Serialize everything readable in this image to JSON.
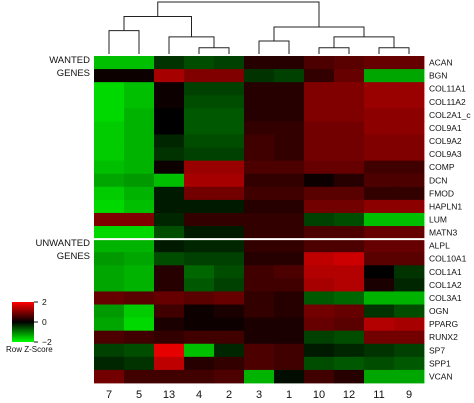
{
  "chart_data": {
    "type": "heatmap",
    "colormap": {
      "low": "#00ff00",
      "mid": "#000000",
      "high": "#ff0000"
    },
    "columns": [
      "7",
      "5",
      "13",
      "4",
      "2",
      "3",
      "1",
      "10",
      "12",
      "11",
      "9"
    ],
    "groups": [
      {
        "label_lines": [
          "WANTED",
          "GENES"
        ]
      },
      {
        "label_lines": [
          "UNWANTED",
          "GENES"
        ]
      }
    ],
    "rows": [
      {
        "gene": "ACAN",
        "group": 0,
        "values": [
          -1.5,
          -1.5,
          -0.4,
          -0.6,
          -0.5,
          0.3,
          0.3,
          0.6,
          0.7,
          0.8,
          0.8
        ]
      },
      {
        "gene": "BGN",
        "group": 0,
        "values": [
          0.1,
          0.1,
          1.3,
          1.0,
          1.0,
          -0.4,
          -0.5,
          0.4,
          0.8,
          -1.3,
          -1.3
        ]
      },
      {
        "gene": "COL11A1",
        "group": 0,
        "values": [
          -1.7,
          -1.5,
          0.1,
          -0.5,
          -0.5,
          0.3,
          0.3,
          1.0,
          1.0,
          1.2,
          1.2
        ]
      },
      {
        "gene": "COL11A2",
        "group": 0,
        "values": [
          -1.7,
          -1.5,
          0.1,
          -0.6,
          -0.6,
          0.3,
          0.3,
          1.0,
          1.0,
          1.2,
          1.2
        ]
      },
      {
        "gene": "COL2A1_c",
        "group": 0,
        "values": [
          -1.7,
          -1.4,
          0.0,
          -0.7,
          -0.7,
          0.3,
          0.3,
          1.0,
          1.0,
          1.1,
          1.1
        ]
      },
      {
        "gene": "COL9A1",
        "group": 0,
        "values": [
          -1.6,
          -1.4,
          0.0,
          -0.7,
          -0.7,
          0.4,
          0.4,
          0.9,
          0.9,
          1.1,
          1.1
        ]
      },
      {
        "gene": "COL9A2",
        "group": 0,
        "values": [
          -1.6,
          -1.4,
          -0.3,
          -0.6,
          -0.6,
          0.5,
          0.4,
          0.9,
          0.9,
          1.0,
          1.0
        ]
      },
      {
        "gene": "COL9A3",
        "group": 0,
        "values": [
          -1.6,
          -1.4,
          -0.4,
          -0.5,
          -0.5,
          0.5,
          0.4,
          0.9,
          0.9,
          1.0,
          1.0
        ]
      },
      {
        "gene": "COMP",
        "group": 0,
        "values": [
          -1.5,
          -1.4,
          0.1,
          1.2,
          1.2,
          0.6,
          0.6,
          0.8,
          0.8,
          0.5,
          0.5
        ]
      },
      {
        "gene": "DCN",
        "group": 0,
        "values": [
          -1.3,
          -1.2,
          -1.5,
          1.3,
          1.3,
          0.4,
          0.4,
          0.1,
          0.3,
          0.6,
          0.6
        ]
      },
      {
        "gene": "FMOD",
        "group": 0,
        "values": [
          -1.6,
          -1.4,
          -0.2,
          0.9,
          0.9,
          0.5,
          0.5,
          0.7,
          0.7,
          0.4,
          0.4
        ]
      },
      {
        "gene": "HAPLN1",
        "group": 0,
        "values": [
          -1.7,
          -1.5,
          -0.2,
          -0.2,
          -0.2,
          0.3,
          0.3,
          0.9,
          0.9,
          1.1,
          1.1
        ]
      },
      {
        "gene": "LUM",
        "group": 0,
        "values": [
          1.0,
          1.0,
          -0.3,
          0.4,
          0.4,
          0.4,
          0.4,
          -0.5,
          -0.6,
          -1.5,
          -1.5
        ]
      },
      {
        "gene": "MATN3",
        "group": 0,
        "values": [
          -1.7,
          -1.7,
          -0.6,
          -0.2,
          -0.2,
          0.4,
          0.4,
          0.6,
          0.6,
          0.8,
          0.8
        ]
      },
      {
        "gene": "ALPL",
        "group": 1,
        "values": [
          -1.4,
          -1.4,
          -0.2,
          -0.3,
          -0.3,
          0.4,
          0.4,
          0.6,
          0.6,
          0.8,
          0.8
        ]
      },
      {
        "gene": "COL10A1",
        "group": 1,
        "values": [
          -1.2,
          -1.3,
          -0.6,
          -0.5,
          -0.5,
          0.3,
          0.3,
          1.5,
          1.6,
          0.7,
          0.7
        ]
      },
      {
        "gene": "COL1A1",
        "group": 1,
        "values": [
          -1.3,
          -1.4,
          0.3,
          -0.8,
          -0.6,
          0.5,
          0.6,
          1.4,
          1.4,
          0.0,
          -0.4
        ]
      },
      {
        "gene": "COL1A2",
        "group": 1,
        "values": [
          -1.3,
          -1.4,
          0.3,
          -0.7,
          -0.5,
          0.5,
          0.5,
          1.3,
          1.4,
          0.2,
          -0.3
        ]
      },
      {
        "gene": "COL3A1",
        "group": 1,
        "values": [
          0.8,
          0.7,
          0.8,
          0.7,
          0.8,
          0.4,
          0.3,
          -0.7,
          -0.8,
          -1.4,
          -1.4
        ]
      },
      {
        "gene": "OGN",
        "group": 1,
        "values": [
          -1.2,
          -1.6,
          0.5,
          0.1,
          0.2,
          0.4,
          0.3,
          0.9,
          0.8,
          -0.4,
          -0.6
        ]
      },
      {
        "gene": "PPARG",
        "group": 1,
        "values": [
          -1.3,
          -1.7,
          0.2,
          0.1,
          0.1,
          0.2,
          0.2,
          0.8,
          0.7,
          1.4,
          1.3
        ]
      },
      {
        "gene": "RUNX2",
        "group": 1,
        "values": [
          0.6,
          0.5,
          0.4,
          0.5,
          0.5,
          0.2,
          0.2,
          -0.5,
          -0.6,
          0.9,
          0.9
        ]
      },
      {
        "gene": "SP7",
        "group": 1,
        "values": [
          -0.5,
          -0.6,
          1.8,
          -1.5,
          -0.3,
          0.6,
          0.5,
          -0.2,
          -0.3,
          -0.4,
          -0.5
        ]
      },
      {
        "gene": "SPP1",
        "group": 1,
        "values": [
          -0.3,
          -0.4,
          1.5,
          0.3,
          0.4,
          0.6,
          0.5,
          -0.6,
          -0.7,
          -0.6,
          -0.7
        ]
      },
      {
        "gene": "VCAN",
        "group": 1,
        "values": [
          0.9,
          0.5,
          0.5,
          0.5,
          0.6,
          -1.4,
          -0.1,
          0.5,
          0.3,
          -1.3,
          -1.3
        ]
      }
    ],
    "column_dendrogram": {
      "tree": [
        [
          [
            "7",
            "5"
          ],
          [
            "13",
            [
              "4",
              "2"
            ]
          ]
        ],
        [
          [
            "3",
            "1"
          ],
          [
            [
              "10",
              "12"
            ],
            [
              "11",
              "9"
            ]
          ]
        ]
      ],
      "merge_heights": {
        "7+5": 0.45,
        "4+2": 0.12,
        "13+(4,2)": 0.33,
        "left": 0.72,
        "3+1": 0.25,
        "10+12": 0.12,
        "11+9": 0.12,
        "(10,12)+(11,9)": 0.33,
        "(3,1)+right": 0.52,
        "root": 1.0
      }
    },
    "legend": {
      "title": "Row Z-Score",
      "ticks": [
        "2",
        "0",
        "−2"
      ],
      "tick_values": [
        2,
        0,
        -2
      ],
      "range": [
        -2,
        2
      ]
    }
  }
}
